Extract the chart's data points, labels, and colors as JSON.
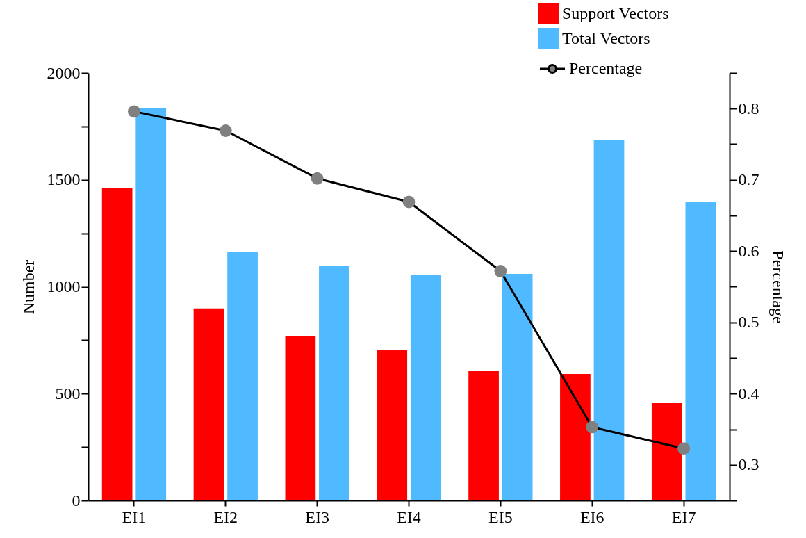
{
  "chart_data": {
    "type": "bar",
    "categories": [
      "EI1",
      "EI2",
      "EI3",
      "EI4",
      "EI5",
      "EI6",
      "EI7"
    ],
    "ylabel": "Number",
    "y2label": "Percentage",
    "series": [
      {
        "name": "Support Vectors",
        "color": "#ff0000",
        "values": [
          1463,
          898,
          771,
          706,
          605,
          592,
          455
        ]
      },
      {
        "name": "Total Vectors",
        "color": "#4fbaff",
        "values": [
          1834,
          1164,
          1096,
          1057,
          1060,
          1685,
          1398
        ]
      },
      {
        "name": "Percentage",
        "type": "line",
        "axis": "y2",
        "color": "#000000",
        "values": [
          0.796,
          0.769,
          0.702,
          0.669,
          0.572,
          0.353,
          0.323
        ]
      }
    ],
    "ylim": [
      0,
      2000
    ],
    "yticks": [
      0,
      {
        "value": 250,
        "label": null
      },
      500,
      {
        "value": 750,
        "label": null
      },
      1000,
      {
        "value": 1250,
        "label": null
      },
      1500,
      {
        "value": 1750,
        "label": null
      },
      2000
    ],
    "y2lim": [
      0.25,
      0.85
    ],
    "y2ticks": [
      {
        "value": 0.25,
        "label": null
      },
      0.3,
      {
        "value": 0.35,
        "label": null
      },
      0.4,
      {
        "value": 0.45,
        "label": null
      },
      0.5,
      {
        "value": 0.55,
        "label": null
      },
      0.6,
      {
        "value": 0.65,
        "label": null
      },
      0.7,
      {
        "value": 0.75,
        "label": null
      },
      0.8,
      {
        "value": 0.85,
        "label": null
      }
    ],
    "marker": "circle",
    "legend": "top right",
    "grid": false
  }
}
